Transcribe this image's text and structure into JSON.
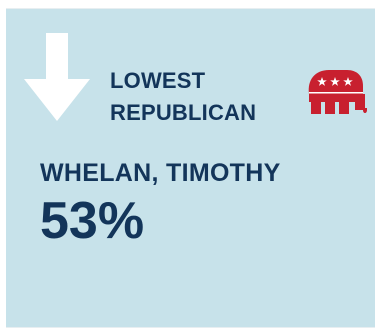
{
  "heading": {
    "line1": "LOWEST",
    "line2": "REPUBLICAN"
  },
  "candidate": {
    "name": "WHELAN, TIMOTHY",
    "percent": "53%"
  },
  "icons": {
    "arrow": "down-arrow-icon",
    "party": "republican-elephant-icon"
  },
  "colors": {
    "background": "#c7e2ea",
    "text": "#13355a",
    "arrow": "#ffffff",
    "gop_red": "#c8202f"
  }
}
